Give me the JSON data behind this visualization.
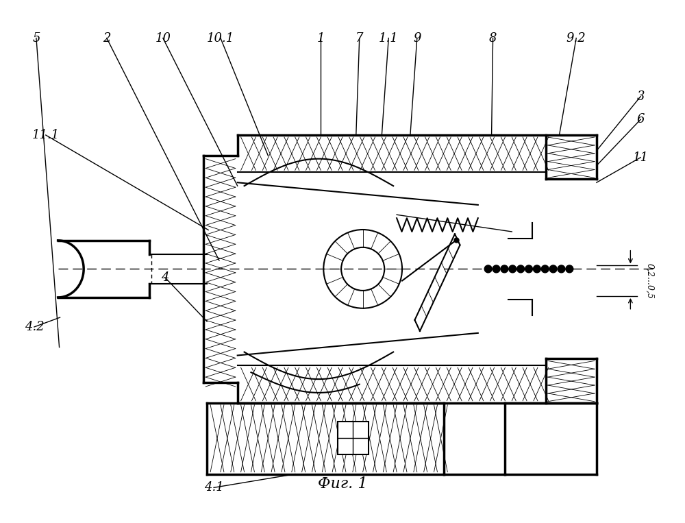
{
  "title": "Фиг. 1",
  "bg_color": "#ffffff",
  "line_color": "#000000",
  "fig_width": 10.0,
  "fig_height": 7.63,
  "dpi": 100
}
